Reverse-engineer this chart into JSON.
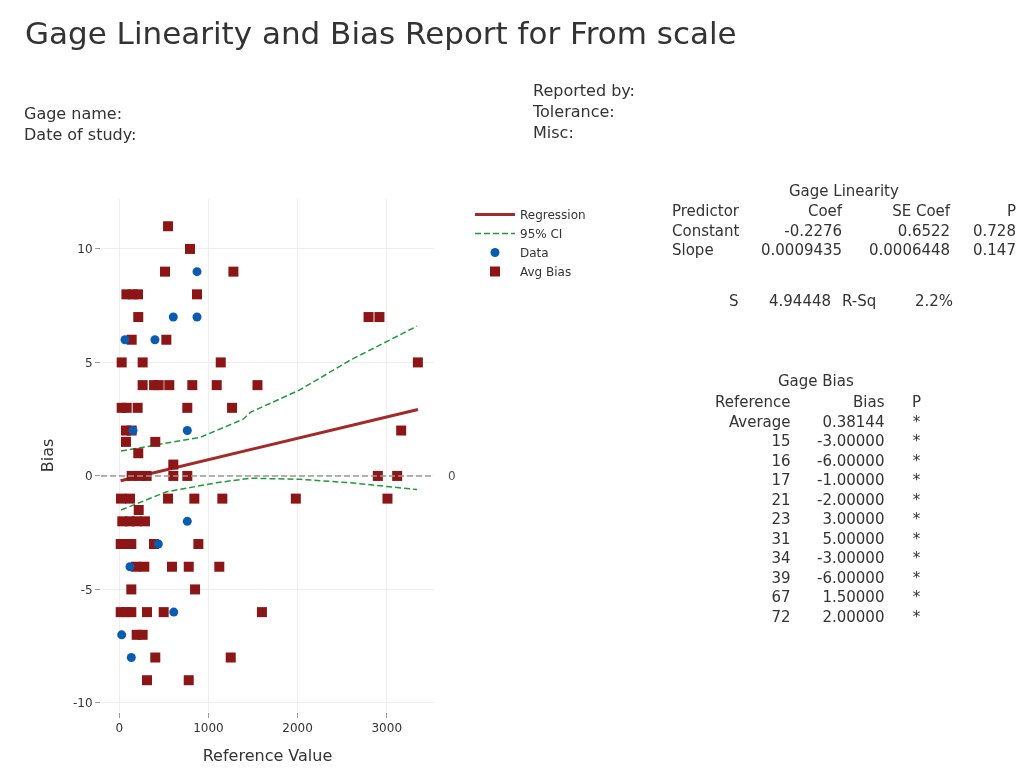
{
  "chart_data": {
    "type": "scatter",
    "title": "Gage Linearity and Bias Report for From scale",
    "xlabel": "Reference Value",
    "ylabel": "Bias",
    "xlim": [
      -205,
      3530
    ],
    "ylim": [
      -10.4,
      12.2
    ],
    "xticks": [
      0,
      1000,
      2000,
      3000
    ],
    "yticks": [
      -10,
      -5,
      0,
      5,
      10
    ],
    "grid": true,
    "legend": "top right",
    "series": [
      {
        "name": "Regression",
        "type": "line",
        "color": "#a32a2a",
        "line_style": "solid",
        "marker": "none",
        "x": [
          15,
          3350
        ],
        "values": [
          -0.21,
          2.93
        ]
      },
      {
        "name": "95% CI",
        "type": "line",
        "color": "#1f9a3a",
        "line_style": "dashed",
        "marker": "none",
        "x": [
          20,
          910,
          1390,
          1470,
          2030,
          2590,
          3340
        ],
        "values": [
          1.1,
          1.7,
          2.5,
          2.8,
          3.8,
          5.1,
          6.6
        ]
      },
      {
        "type": "line",
        "color": "#1f9a3a",
        "line_style": "dashed",
        "marker": "none",
        "x": [
          20,
          530,
          1090,
          1470,
          2030,
          2590,
          3340
        ],
        "values": [
          -1.5,
          -0.7,
          -0.3,
          -0.1,
          -0.15,
          -0.3,
          -0.6
        ]
      },
      {
        "name": "Data",
        "color": "#0a5cb0",
        "marker": "circle",
        "x": [
          64,
          400,
          606,
          872,
          872,
          154,
          763,
          763,
          438,
          120,
          611,
          27,
          135
        ],
        "values": [
          6,
          6,
          7,
          7,
          9,
          2,
          2,
          -2,
          -3,
          -4,
          -6,
          -7,
          -8
        ]
      },
      {
        "name": "Avg Bias",
        "color": "#8c1515",
        "marker": "square",
        "x": [
          547,
          793,
          513,
          1280,
          80,
          150,
          210,
          872,
          213,
          139,
          528,
          27,
          262,
          1138,
          262,
          390,
          442,
          561,
          819,
          1093,
          1550,
          27,
          83,
          206,
          763,
          1265,
          75,
          139,
          75,
          404,
          213,
          606,
          139,
          232,
          307,
          606,
          763,
          19,
          120,
          547,
          842,
          1156,
          218,
          34,
          120,
          195,
          288,
          16,
          75,
          135,
          389,
          887,
          187,
          281,
          591,
          779,
          1122,
          135,
          850,
          16,
          75,
          135,
          311,
          498,
          1600,
          195,
          262,
          404,
          1250,
          311,
          779,
          2796,
          2918,
          3349,
          3162,
          2900,
          3117,
          1980,
          3008
        ],
        "values": [
          11,
          10,
          9,
          9,
          8,
          8,
          8,
          8,
          7,
          6,
          6,
          5,
          5,
          5,
          4,
          4,
          4,
          4,
          4,
          4,
          4,
          3,
          3,
          3,
          3,
          3,
          2,
          2,
          1.5,
          1.5,
          1,
          0.5,
          0,
          0,
          0,
          0,
          0,
          -1,
          -1,
          -1,
          -1,
          -1,
          -1.5,
          -2,
          -2,
          -2,
          -2,
          -3,
          -3,
          -3,
          -3,
          -3,
          -4,
          -4,
          -4,
          -4,
          -4,
          -5,
          -5,
          -6,
          -6,
          -6,
          -6,
          -6,
          -6,
          -7,
          -7,
          -8,
          -8,
          -9,
          -9,
          7,
          7,
          5,
          2,
          0,
          0,
          -1,
          -1
        ]
      }
    ],
    "ref_lines": [
      {
        "axis": "y",
        "value": 0,
        "label": "0",
        "color": "#999999",
        "line_style": "dashed"
      }
    ],
    "annotations": [
      "Gage name:\nDate of study:",
      "Reported by:\nTolerance:\nMisc:",
      "Gage Linearity",
      "Predictor\nConstant\nSlope",
      "Coef\n-0.2276\n0.0009435",
      "SE Coef\n0.6522\n0.0006448",
      "P\n0.728\n0.147",
      "S",
      "4.94448",
      "R-Sq",
      "2.2%",
      "Gage Bias",
      "Reference\nAverage\n15\n16\n17\n21\n23\n31\n34\n39\n67\n72",
      "Bias\n0.38144\n-3.00000\n-6.00000\n-1.00000\n-2.00000\n3.00000\n5.00000\n-3.00000\n-6.00000\n1.50000\n2.00000",
      "P\n*\n*\n*\n*\n*\n*\n*\n*\n*\n*\n*"
    ]
  }
}
